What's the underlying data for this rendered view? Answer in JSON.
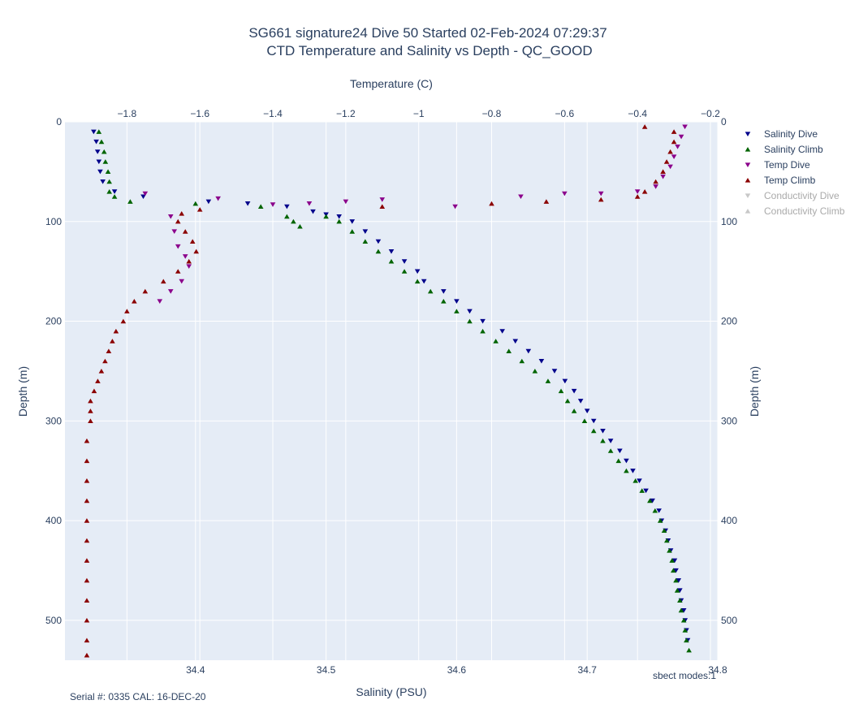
{
  "chart_data": {
    "type": "scatter",
    "title": "SG661 signature24 Dive 50 Started 02-Feb-2024 07:29:37",
    "subtitle": "CTD Temperature and Salinity vs Depth - QC_GOOD",
    "x_bottom_label": "Salinity (PSU)",
    "x_top_label": "Temperature (C)",
    "y_label_left": "Depth (m)",
    "y_label_right": "Depth (m)",
    "x_bottom_range": [
      34.3,
      34.8
    ],
    "x_bottom_ticks": [
      "34.4",
      "34.5",
      "34.6",
      "34.7",
      "34.8"
    ],
    "x_top_range": [
      -1.97,
      -0.18
    ],
    "x_top_ticks": [
      "−1.8",
      "−1.6",
      "−1.4",
      "−1.2",
      "−1",
      "−0.8",
      "−0.6",
      "−0.4",
      "−0.2"
    ],
    "y_range": [
      0,
      540
    ],
    "y_reversed": true,
    "y_ticks": [
      "0",
      "100",
      "200",
      "300",
      "400",
      "500"
    ],
    "y_ticks_right": [
      "0",
      "100",
      "200",
      "300",
      "400",
      "500"
    ],
    "grid": true,
    "legend_placement": "right",
    "series": [
      {
        "name": "Salinity Dive",
        "axis": "bottom",
        "marker": "triangle-down",
        "color": "#00008b",
        "visible": true,
        "points": [
          [
            34.322,
            10
          ],
          [
            34.324,
            20
          ],
          [
            34.325,
            30
          ],
          [
            34.326,
            40
          ],
          [
            34.327,
            50
          ],
          [
            34.329,
            60
          ],
          [
            34.338,
            70
          ],
          [
            34.36,
            75
          ],
          [
            34.41,
            80
          ],
          [
            34.44,
            82
          ],
          [
            34.47,
            85
          ],
          [
            34.49,
            90
          ],
          [
            34.5,
            93
          ],
          [
            34.51,
            95
          ],
          [
            34.52,
            100
          ],
          [
            34.53,
            110
          ],
          [
            34.54,
            120
          ],
          [
            34.55,
            130
          ],
          [
            34.56,
            140
          ],
          [
            34.57,
            150
          ],
          [
            34.575,
            160
          ],
          [
            34.59,
            170
          ],
          [
            34.6,
            180
          ],
          [
            34.61,
            190
          ],
          [
            34.62,
            200
          ],
          [
            34.635,
            210
          ],
          [
            34.645,
            220
          ],
          [
            34.655,
            230
          ],
          [
            34.665,
            240
          ],
          [
            34.675,
            250
          ],
          [
            34.683,
            260
          ],
          [
            34.69,
            270
          ],
          [
            34.695,
            280
          ],
          [
            34.7,
            290
          ],
          [
            34.705,
            300
          ],
          [
            34.712,
            310
          ],
          [
            34.718,
            320
          ],
          [
            34.725,
            330
          ],
          [
            34.73,
            340
          ],
          [
            34.735,
            350
          ],
          [
            34.74,
            360
          ],
          [
            34.745,
            370
          ],
          [
            34.75,
            380
          ],
          [
            34.755,
            390
          ],
          [
            34.757,
            400
          ],
          [
            34.76,
            410
          ],
          [
            34.762,
            420
          ],
          [
            34.764,
            430
          ],
          [
            34.767,
            440
          ],
          [
            34.768,
            450
          ],
          [
            34.77,
            460
          ],
          [
            34.771,
            470
          ],
          [
            34.772,
            480
          ],
          [
            34.774,
            490
          ],
          [
            34.775,
            500
          ],
          [
            34.776,
            510
          ],
          [
            34.777,
            520
          ]
        ]
      },
      {
        "name": "Salinity Climb",
        "axis": "bottom",
        "marker": "triangle-up",
        "color": "#006400",
        "visible": true,
        "points": [
          [
            34.326,
            10
          ],
          [
            34.328,
            20
          ],
          [
            34.33,
            30
          ],
          [
            34.331,
            40
          ],
          [
            34.333,
            50
          ],
          [
            34.334,
            60
          ],
          [
            34.334,
            70
          ],
          [
            34.338,
            75
          ],
          [
            34.35,
            80
          ],
          [
            34.4,
            82
          ],
          [
            34.45,
            85
          ],
          [
            34.47,
            95
          ],
          [
            34.475,
            100
          ],
          [
            34.48,
            105
          ],
          [
            34.5,
            95
          ],
          [
            34.51,
            100
          ],
          [
            34.52,
            110
          ],
          [
            34.53,
            120
          ],
          [
            34.54,
            130
          ],
          [
            34.55,
            140
          ],
          [
            34.56,
            150
          ],
          [
            34.57,
            160
          ],
          [
            34.58,
            170
          ],
          [
            34.59,
            180
          ],
          [
            34.6,
            190
          ],
          [
            34.61,
            200
          ],
          [
            34.62,
            210
          ],
          [
            34.63,
            220
          ],
          [
            34.64,
            230
          ],
          [
            34.65,
            240
          ],
          [
            34.66,
            250
          ],
          [
            34.67,
            260
          ],
          [
            34.68,
            270
          ],
          [
            34.685,
            280
          ],
          [
            34.69,
            290
          ],
          [
            34.698,
            300
          ],
          [
            34.705,
            310
          ],
          [
            34.712,
            320
          ],
          [
            34.718,
            330
          ],
          [
            34.724,
            340
          ],
          [
            34.73,
            350
          ],
          [
            34.737,
            360
          ],
          [
            34.742,
            370
          ],
          [
            34.748,
            380
          ],
          [
            34.752,
            390
          ],
          [
            34.756,
            400
          ],
          [
            34.759,
            410
          ],
          [
            34.761,
            420
          ],
          [
            34.763,
            430
          ],
          [
            34.765,
            440
          ],
          [
            34.766,
            450
          ],
          [
            34.768,
            460
          ],
          [
            34.769,
            470
          ],
          [
            34.771,
            480
          ],
          [
            34.772,
            490
          ],
          [
            34.774,
            500
          ],
          [
            34.775,
            510
          ],
          [
            34.776,
            520
          ],
          [
            34.778,
            530
          ]
        ]
      },
      {
        "name": "Temp Dive",
        "axis": "top",
        "marker": "triangle-down",
        "color": "#8b008b",
        "visible": true,
        "points": [
          [
            -0.27,
            5
          ],
          [
            -0.28,
            15
          ],
          [
            -0.29,
            25
          ],
          [
            -0.3,
            35
          ],
          [
            -0.31,
            45
          ],
          [
            -0.33,
            55
          ],
          [
            -0.35,
            65
          ],
          [
            -0.4,
            70
          ],
          [
            -0.5,
            72
          ],
          [
            -0.6,
            72
          ],
          [
            -0.72,
            75
          ],
          [
            -0.9,
            85
          ],
          [
            -1.1,
            78
          ],
          [
            -1.2,
            80
          ],
          [
            -1.3,
            82
          ],
          [
            -1.4,
            83
          ],
          [
            -1.55,
            77
          ],
          [
            -1.75,
            72
          ],
          [
            -1.68,
            95
          ],
          [
            -1.67,
            110
          ],
          [
            -1.66,
            125
          ],
          [
            -1.64,
            135
          ],
          [
            -1.63,
            145
          ],
          [
            -1.65,
            160
          ],
          [
            -1.68,
            170
          ],
          [
            -1.71,
            180
          ]
        ]
      },
      {
        "name": "Temp Climb",
        "axis": "top",
        "marker": "triangle-up",
        "color": "#8b0000",
        "visible": true,
        "points": [
          [
            -0.38,
            5
          ],
          [
            -0.3,
            10
          ],
          [
            -0.3,
            20
          ],
          [
            -0.31,
            30
          ],
          [
            -0.32,
            40
          ],
          [
            -0.33,
            50
          ],
          [
            -0.35,
            60
          ],
          [
            -0.38,
            70
          ],
          [
            -0.4,
            75
          ],
          [
            -0.5,
            78
          ],
          [
            -0.65,
            80
          ],
          [
            -0.8,
            82
          ],
          [
            -1.1,
            85
          ],
          [
            -1.6,
            88
          ],
          [
            -1.65,
            92
          ],
          [
            -1.66,
            100
          ],
          [
            -1.64,
            110
          ],
          [
            -1.62,
            120
          ],
          [
            -1.61,
            130
          ],
          [
            -1.63,
            140
          ],
          [
            -1.66,
            150
          ],
          [
            -1.7,
            160
          ],
          [
            -1.75,
            170
          ],
          [
            -1.78,
            180
          ],
          [
            -1.8,
            190
          ],
          [
            -1.81,
            200
          ],
          [
            -1.83,
            210
          ],
          [
            -1.84,
            220
          ],
          [
            -1.85,
            230
          ],
          [
            -1.86,
            240
          ],
          [
            -1.87,
            250
          ],
          [
            -1.88,
            260
          ],
          [
            -1.89,
            270
          ],
          [
            -1.9,
            280
          ],
          [
            -1.9,
            290
          ],
          [
            -1.9,
            300
          ],
          [
            -1.91,
            320
          ],
          [
            -1.91,
            340
          ],
          [
            -1.91,
            360
          ],
          [
            -1.91,
            380
          ],
          [
            -1.91,
            400
          ],
          [
            -1.91,
            420
          ],
          [
            -1.91,
            440
          ],
          [
            -1.91,
            460
          ],
          [
            -1.91,
            480
          ],
          [
            -1.91,
            500
          ],
          [
            -1.91,
            520
          ],
          [
            -1.91,
            535
          ]
        ]
      },
      {
        "name": "Conductivity Dive",
        "axis": "none",
        "marker": "triangle-down",
        "color": "#aaaaaa",
        "visible": false,
        "points": []
      },
      {
        "name": "Conductivity Climb",
        "axis": "none",
        "marker": "triangle-up",
        "color": "#aaaaaa",
        "visible": false,
        "points": []
      }
    ],
    "annotations": {
      "serial": "Serial #: 0335  CAL: 16-DEC-20",
      "mode": "sbect modes:1"
    },
    "colors": {
      "plot_bg": "#e5ecf6",
      "grid": "#ffffff",
      "text": "#2a3f5f"
    }
  }
}
